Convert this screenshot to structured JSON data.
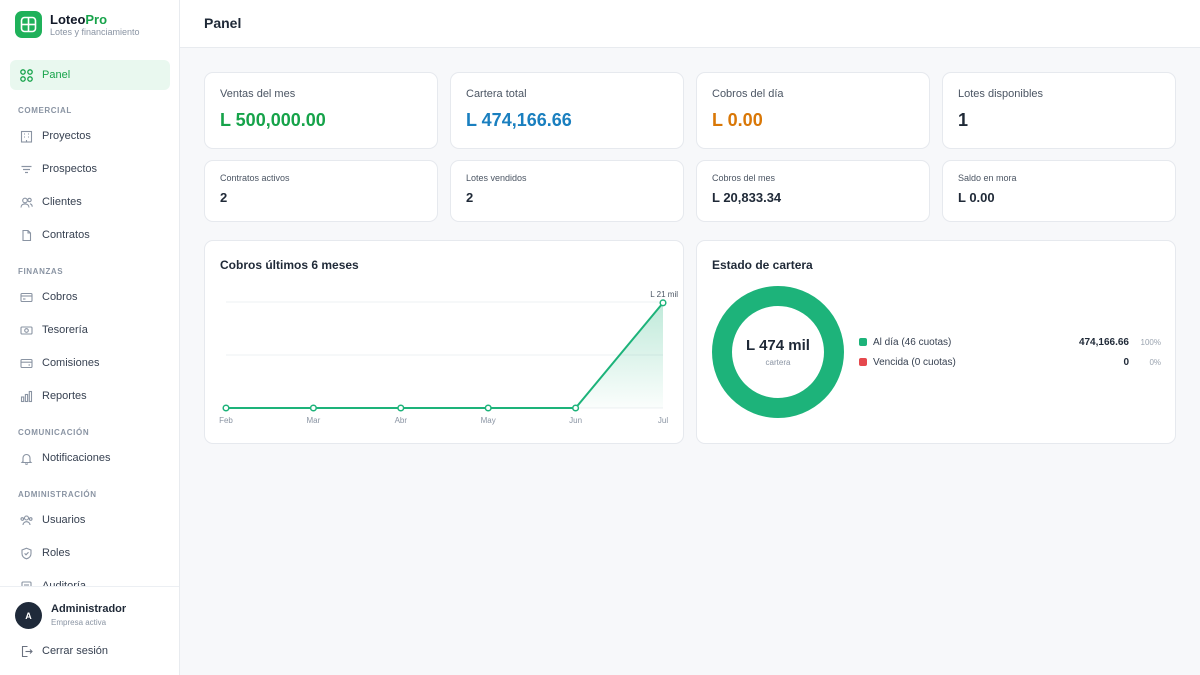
{
  "colors": {
    "accent": "#16a34a",
    "blue": "#1a7fbf",
    "orange": "#d97706",
    "chart_green": "#1db37a",
    "danger": "#e5484d"
  },
  "brand": {
    "name_part1": "Loteo",
    "name_part2": "Pro",
    "subtitle": "Lotes y financiamiento"
  },
  "sidebar": {
    "active": {
      "label": "Panel",
      "icon": "grid-icon"
    },
    "sections": [
      {
        "title": "COMERCIAL",
        "items": [
          {
            "label": "Proyectos",
            "icon": "building-icon"
          },
          {
            "label": "Prospectos",
            "icon": "filter-icon"
          },
          {
            "label": "Clientes",
            "icon": "users-icon"
          },
          {
            "label": "Contratos",
            "icon": "document-icon"
          }
        ]
      },
      {
        "title": "FINANZAS",
        "items": [
          {
            "label": "Cobros",
            "icon": "card-icon"
          },
          {
            "label": "Tesorería",
            "icon": "cash-icon"
          },
          {
            "label": "Comisiones",
            "icon": "wallet-icon"
          },
          {
            "label": "Reportes",
            "icon": "bar-chart-icon"
          }
        ]
      },
      {
        "title": "COMUNICACIÓN",
        "items": [
          {
            "label": "Notificaciones",
            "icon": "bell-icon"
          }
        ]
      },
      {
        "title": "ADMINISTRACIÓN",
        "items": [
          {
            "label": "Usuarios",
            "icon": "user-group-icon"
          },
          {
            "label": "Roles",
            "icon": "shield-icon"
          },
          {
            "label": "Auditoría",
            "icon": "audit-icon"
          }
        ]
      }
    ]
  },
  "user": {
    "initial": "A",
    "name": "Administrador",
    "subtitle": "Empresa activa",
    "logout_label": "Cerrar sesión"
  },
  "header": {
    "title": "Panel"
  },
  "kpis": [
    {
      "label": "Ventas del mes",
      "value": "L 500,000.00",
      "color": "#16a34a"
    },
    {
      "label": "Cartera total",
      "value": "L 474,166.66",
      "color": "#1a7fbf"
    },
    {
      "label": "Cobros del día",
      "value": "L 0.00",
      "color": "#d97706"
    },
    {
      "label": "Lotes disponibles",
      "value": "1",
      "color": "#1f2937"
    }
  ],
  "stats": [
    {
      "label": "Contratos activos",
      "value": "2"
    },
    {
      "label": "Lotes vendidos",
      "value": "2"
    },
    {
      "label": "Cobros del mes",
      "value": "L 20,833.34"
    },
    {
      "label": "Saldo en mora",
      "value": "L 0.00"
    }
  ],
  "collections_chart": {
    "title": "Cobros últimos 6 meses",
    "last_point_label": "L 21 mil"
  },
  "portfolio": {
    "title": "Estado de cartera",
    "center_value": "L 474 mil",
    "center_label": "cartera",
    "legend": [
      {
        "label": "Al día (46 cuotas)",
        "amount": "474,166.66",
        "pct": "100%",
        "color": "#1db37a"
      },
      {
        "label": "Vencida (0 cuotas)",
        "amount": "0",
        "pct": "0%",
        "color": "#e5484d"
      }
    ]
  },
  "chart_data": [
    {
      "type": "area",
      "title": "Cobros últimos 6 meses",
      "categories": [
        "Feb",
        "Mar",
        "Abr",
        "May",
        "Jun",
        "Jul"
      ],
      "values": [
        0,
        0,
        0,
        0,
        0,
        20833.34
      ],
      "ylim": [
        0,
        21000
      ],
      "grid": true,
      "annotations": [
        "L 21 mil"
      ]
    },
    {
      "type": "pie",
      "title": "Estado de cartera",
      "categories": [
        "Al día (46 cuotas)",
        "Vencida (0 cuotas)"
      ],
      "values": [
        474166.66,
        0
      ]
    }
  ]
}
